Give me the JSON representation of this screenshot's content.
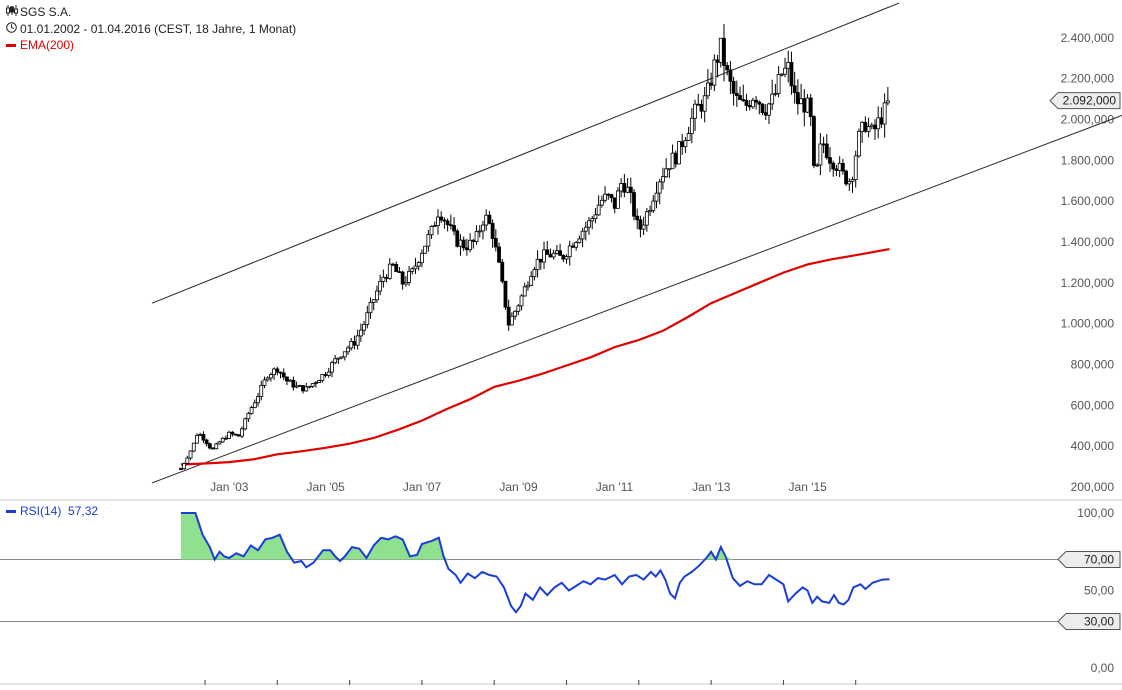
{
  "header": {
    "title": "SGS S.A.",
    "period": "01.01.2002 - 01.04.2016 (CEST, 18 Jahre, 1 Monat)",
    "indicator_label": "EMA(200)",
    "title_icon": "candlestick-chart-icon",
    "period_icon": "clock-icon"
  },
  "colors": {
    "candle": "#000000",
    "ema": "#e00000",
    "rsi": "#1a3fd6",
    "rsi_fill": "#8fe08f",
    "axis_text": "#555555",
    "grid_line": "#888888"
  },
  "chart_data": [
    {
      "type": "candlestick",
      "title": "SGS S.A.",
      "ylim": [
        200000,
        2600000
      ],
      "y_ticks": [
        "200,000",
        "400,000",
        "600,000",
        "800,000",
        "1.000,000",
        "1.200,000",
        "1.400,000",
        "1.600,000",
        "1.800,000",
        "2.000,000",
        "2.200,000",
        "2.400,000"
      ],
      "y_tick_values": [
        200000,
        400000,
        600000,
        800000,
        1000000,
        1200000,
        1400000,
        1600000,
        1800000,
        2000000,
        2200000,
        2400000
      ],
      "x_ticks": [
        "Jan '03",
        "Jan '05",
        "Jan '07",
        "Jan '09",
        "Jan '11",
        "Jan '13",
        "Jan '15"
      ],
      "x_tick_values": [
        2003.0,
        2005.0,
        2007.0,
        2009.0,
        2011.0,
        2013.0,
        2015.0
      ],
      "last_value_label": "2.092,000",
      "last_value": 2092000,
      "close_points": [
        [
          2002.0,
          290000
        ],
        [
          2002.25,
          400000
        ],
        [
          2002.35,
          470000
        ],
        [
          2002.5,
          430000
        ],
        [
          2002.65,
          380000
        ],
        [
          2002.8,
          420000
        ],
        [
          2003.0,
          460000
        ],
        [
          2003.2,
          450000
        ],
        [
          2003.4,
          560000
        ],
        [
          2003.6,
          650000
        ],
        [
          2003.8,
          750000
        ],
        [
          2004.0,
          780000
        ],
        [
          2004.2,
          720000
        ],
        [
          2004.4,
          690000
        ],
        [
          2004.6,
          680000
        ],
        [
          2004.8,
          720000
        ],
        [
          2005.0,
          760000
        ],
        [
          2005.2,
          820000
        ],
        [
          2005.4,
          870000
        ],
        [
          2005.6,
          910000
        ],
        [
          2005.8,
          1000000
        ],
        [
          2006.0,
          1120000
        ],
        [
          2006.2,
          1230000
        ],
        [
          2006.4,
          1280000
        ],
        [
          2006.6,
          1200000
        ],
        [
          2006.8,
          1250000
        ],
        [
          2007.0,
          1360000
        ],
        [
          2007.2,
          1450000
        ],
        [
          2007.35,
          1560000
        ],
        [
          2007.5,
          1500000
        ],
        [
          2007.7,
          1410000
        ],
        [
          2007.9,
          1380000
        ],
        [
          2008.1,
          1400000
        ],
        [
          2008.3,
          1530000
        ],
        [
          2008.45,
          1460000
        ],
        [
          2008.6,
          1280000
        ],
        [
          2008.8,
          1000000
        ],
        [
          2008.95,
          1070000
        ],
        [
          2009.1,
          1150000
        ],
        [
          2009.3,
          1280000
        ],
        [
          2009.5,
          1330000
        ],
        [
          2009.7,
          1340000
        ],
        [
          2009.9,
          1320000
        ],
        [
          2010.1,
          1390000
        ],
        [
          2010.3,
          1450000
        ],
        [
          2010.5,
          1500000
        ],
        [
          2010.7,
          1600000
        ],
        [
          2010.85,
          1620000
        ],
        [
          2011.0,
          1580000
        ],
        [
          2011.15,
          1700000
        ],
        [
          2011.3,
          1640000
        ],
        [
          2011.5,
          1450000
        ],
        [
          2011.7,
          1560000
        ],
        [
          2011.9,
          1700000
        ],
        [
          2012.1,
          1780000
        ],
        [
          2012.3,
          1830000
        ],
        [
          2012.5,
          1950000
        ],
        [
          2012.7,
          2050000
        ],
        [
          2012.9,
          2100000
        ],
        [
          2013.05,
          2250000
        ],
        [
          2013.2,
          2350000
        ],
        [
          2013.35,
          2200000
        ],
        [
          2013.5,
          2100000
        ],
        [
          2013.7,
          2060000
        ],
        [
          2013.9,
          2130000
        ],
        [
          2014.1,
          2050000
        ],
        [
          2014.3,
          2100000
        ],
        [
          2014.45,
          2220000
        ],
        [
          2014.6,
          2250000
        ],
        [
          2014.75,
          2090000
        ],
        [
          2014.9,
          2080000
        ],
        [
          2015.05,
          2050000
        ],
        [
          2015.15,
          1680000
        ],
        [
          2015.3,
          1900000
        ],
        [
          2015.45,
          1820000
        ],
        [
          2015.6,
          1780000
        ],
        [
          2015.75,
          1720000
        ],
        [
          2015.9,
          1700000
        ],
        [
          2016.05,
          1900000
        ],
        [
          2016.2,
          1980000
        ],
        [
          2016.35,
          1930000
        ],
        [
          2016.5,
          2000000
        ],
        [
          2016.62,
          2050000
        ],
        [
          2016.7,
          2092000
        ]
      ],
      "ema200": [
        [
          2002.0,
          310000
        ],
        [
          2002.5,
          315000
        ],
        [
          2003.0,
          322000
        ],
        [
          2003.5,
          335000
        ],
        [
          2004.0,
          360000
        ],
        [
          2004.5,
          375000
        ],
        [
          2005.0,
          392000
        ],
        [
          2005.5,
          412000
        ],
        [
          2006.0,
          440000
        ],
        [
          2006.5,
          480000
        ],
        [
          2007.0,
          525000
        ],
        [
          2007.5,
          580000
        ],
        [
          2008.0,
          630000
        ],
        [
          2008.5,
          690000
        ],
        [
          2009.0,
          720000
        ],
        [
          2009.5,
          755000
        ],
        [
          2010.0,
          795000
        ],
        [
          2010.5,
          835000
        ],
        [
          2011.0,
          885000
        ],
        [
          2011.5,
          920000
        ],
        [
          2012.0,
          965000
        ],
        [
          2012.5,
          1030000
        ],
        [
          2013.0,
          1100000
        ],
        [
          2013.5,
          1150000
        ],
        [
          2014.0,
          1200000
        ],
        [
          2014.5,
          1250000
        ],
        [
          2015.0,
          1290000
        ],
        [
          2015.5,
          1315000
        ],
        [
          2016.0,
          1335000
        ],
        [
          2016.7,
          1365000
        ]
      ],
      "channel_upper": [
        [
          2001.4,
          1100000
        ],
        [
          2016.9,
          2570000
        ]
      ],
      "channel_lower": [
        [
          2001.4,
          220000
        ],
        [
          2024.0,
          2020000
        ]
      ]
    },
    {
      "type": "line",
      "title": "RSI(14)",
      "legend": "RSI(14)",
      "last_value_text": "57,32",
      "ylim": [
        0,
        100
      ],
      "y_ticks": [
        "100,00",
        "70,00",
        "50,00",
        "30,00",
        "0,00"
      ],
      "y_tick_values": [
        100,
        70,
        50,
        30,
        0
      ],
      "threshold_lines": [
        70,
        30
      ],
      "threshold_labels": [
        "70,00",
        "30,00"
      ],
      "values": [
        [
          2002.0,
          100
        ],
        [
          2002.3,
          100
        ],
        [
          2002.45,
          86
        ],
        [
          2002.6,
          78
        ],
        [
          2002.7,
          70
        ],
        [
          2002.8,
          75
        ],
        [
          2002.9,
          72
        ],
        [
          2003.0,
          71
        ],
        [
          2003.15,
          74
        ],
        [
          2003.3,
          72
        ],
        [
          2003.45,
          79
        ],
        [
          2003.6,
          76
        ],
        [
          2003.75,
          83
        ],
        [
          2003.9,
          84
        ],
        [
          2004.05,
          86
        ],
        [
          2004.2,
          75
        ],
        [
          2004.35,
          68
        ],
        [
          2004.5,
          69
        ],
        [
          2004.6,
          65
        ],
        [
          2004.75,
          68
        ],
        [
          2004.85,
          72
        ],
        [
          2004.95,
          76
        ],
        [
          2005.1,
          76
        ],
        [
          2005.2,
          72
        ],
        [
          2005.3,
          69
        ],
        [
          2005.4,
          72
        ],
        [
          2005.55,
          78
        ],
        [
          2005.7,
          77
        ],
        [
          2005.85,
          71
        ],
        [
          2006.0,
          79
        ],
        [
          2006.15,
          84
        ],
        [
          2006.3,
          83
        ],
        [
          2006.45,
          85
        ],
        [
          2006.6,
          83
        ],
        [
          2006.75,
          72
        ],
        [
          2006.9,
          73
        ],
        [
          2007.0,
          80
        ],
        [
          2007.2,
          82
        ],
        [
          2007.35,
          84
        ],
        [
          2007.45,
          72
        ],
        [
          2007.55,
          64
        ],
        [
          2007.7,
          60
        ],
        [
          2007.8,
          55
        ],
        [
          2007.95,
          61
        ],
        [
          2008.1,
          58
        ],
        [
          2008.25,
          62
        ],
        [
          2008.4,
          60
        ],
        [
          2008.55,
          59
        ],
        [
          2008.7,
          52
        ],
        [
          2008.85,
          40
        ],
        [
          2008.95,
          36
        ],
        [
          2009.05,
          40
        ],
        [
          2009.15,
          48
        ],
        [
          2009.3,
          44
        ],
        [
          2009.45,
          52
        ],
        [
          2009.6,
          47
        ],
        [
          2009.75,
          52
        ],
        [
          2009.9,
          55
        ],
        [
          2010.05,
          50
        ],
        [
          2010.2,
          53
        ],
        [
          2010.35,
          56
        ],
        [
          2010.5,
          54
        ],
        [
          2010.65,
          58
        ],
        [
          2010.8,
          57
        ],
        [
          2011.0,
          60
        ],
        [
          2011.15,
          54
        ],
        [
          2011.3,
          59
        ],
        [
          2011.45,
          60
        ],
        [
          2011.6,
          57
        ],
        [
          2011.75,
          62
        ],
        [
          2011.85,
          59
        ],
        [
          2011.95,
          63
        ],
        [
          2012.05,
          57
        ],
        [
          2012.15,
          48
        ],
        [
          2012.25,
          45
        ],
        [
          2012.35,
          55
        ],
        [
          2012.45,
          59
        ],
        [
          2012.6,
          62
        ],
        [
          2012.75,
          66
        ],
        [
          2012.9,
          71
        ],
        [
          2013.0,
          75
        ],
        [
          2013.1,
          70
        ],
        [
          2013.2,
          78
        ],
        [
          2013.3,
          72
        ],
        [
          2013.45,
          58
        ],
        [
          2013.6,
          53
        ],
        [
          2013.75,
          56
        ],
        [
          2013.9,
          54
        ],
        [
          2014.05,
          54
        ],
        [
          2014.2,
          60
        ],
        [
          2014.35,
          57
        ],
        [
          2014.5,
          54
        ],
        [
          2014.6,
          43
        ],
        [
          2014.75,
          48
        ],
        [
          2014.9,
          52
        ],
        [
          2015.0,
          50
        ],
        [
          2015.1,
          42
        ],
        [
          2015.2,
          46
        ],
        [
          2015.3,
          43
        ],
        [
          2015.45,
          42
        ],
        [
          2015.55,
          47
        ],
        [
          2015.65,
          42
        ],
        [
          2015.75,
          41
        ],
        [
          2015.85,
          44
        ],
        [
          2015.95,
          52
        ],
        [
          2016.1,
          54
        ],
        [
          2016.2,
          51
        ],
        [
          2016.35,
          55
        ],
        [
          2016.55,
          57
        ],
        [
          2016.7,
          57.32
        ]
      ]
    }
  ]
}
